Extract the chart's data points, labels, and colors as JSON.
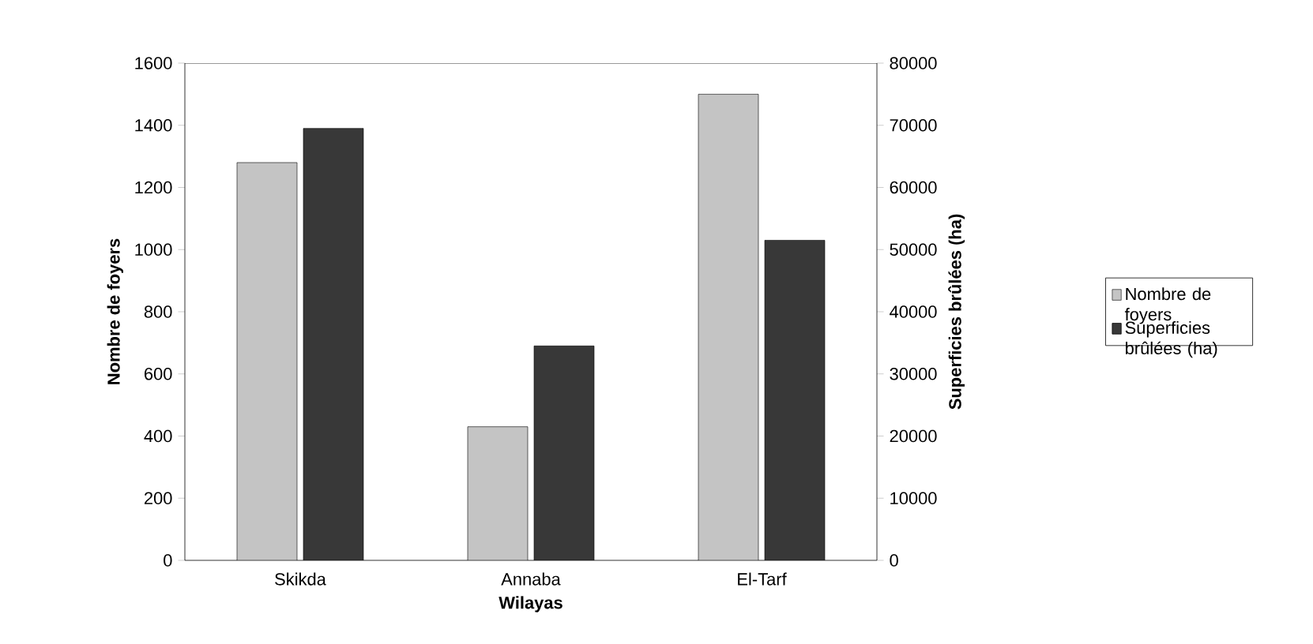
{
  "chart_data": {
    "type": "bar",
    "xlabel": "Wilayas",
    "ylabel": "Nombre de foyers",
    "y2label": "Superficies brûlées (ha)",
    "categories": [
      "Skikda",
      "Annaba",
      "El-Tarf"
    ],
    "series": [
      {
        "name": "Nombre de foyers",
        "color": "#c4c4c4",
        "values": [
          1280,
          430,
          1500
        ]
      },
      {
        "name": "Superficies brûlées (ha)",
        "color": "#383838",
        "axis": "y2",
        "values": [
          69500,
          34500,
          51500
        ]
      }
    ],
    "ylim": [
      0,
      1600
    ],
    "yticks": [
      0,
      200,
      400,
      600,
      800,
      1000,
      1200,
      1400,
      1600
    ],
    "y2lim": [
      0,
      80000
    ],
    "y2ticks": [
      0,
      10000,
      20000,
      30000,
      40000,
      50000,
      60000,
      70000,
      80000
    ],
    "grid": false,
    "legend": "right"
  }
}
